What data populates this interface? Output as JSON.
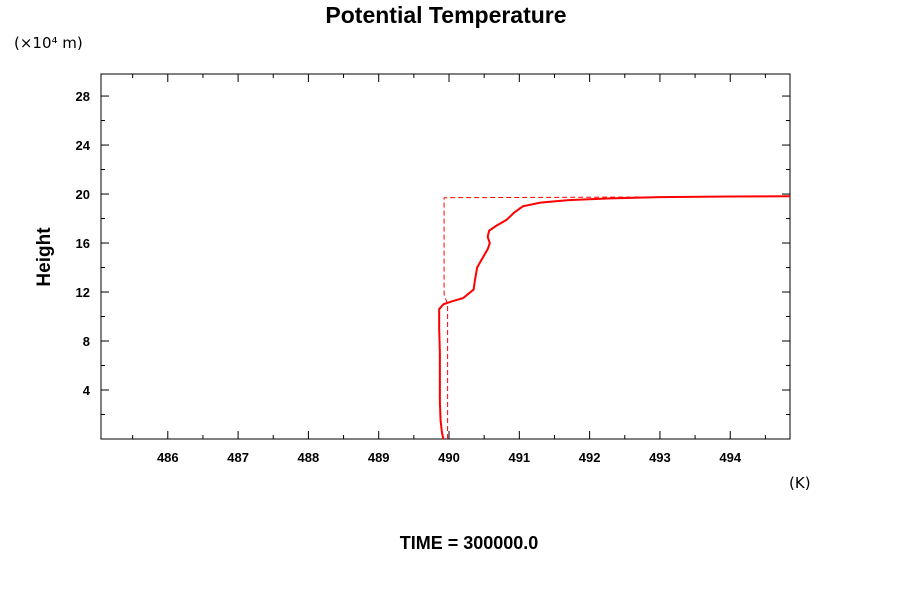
{
  "chart_data": {
    "type": "line",
    "title": "Potential Temperature",
    "ylabel": "Height",
    "yunits": "(×10⁴ m)",
    "xunits": "(K)",
    "footer": "TIME = 300000.0",
    "xlim": [
      485.05,
      494.85
    ],
    "ylim": [
      0,
      29.8
    ],
    "xticks": [
      486,
      487,
      488,
      489,
      490,
      491,
      492,
      493,
      494
    ],
    "yticks": [
      4,
      8,
      12,
      16,
      20,
      24,
      28
    ],
    "grid": false,
    "colors": {
      "series": "#ff0000",
      "axes": "#000000"
    },
    "series": [
      {
        "style": "solid",
        "points": [
          [
            489.92,
            0.0
          ],
          [
            489.9,
            0.5
          ],
          [
            489.88,
            1.5
          ],
          [
            489.87,
            3.0
          ],
          [
            489.87,
            5.0
          ],
          [
            489.87,
            7.0
          ],
          [
            489.86,
            9.0
          ],
          [
            489.86,
            10.6
          ],
          [
            489.92,
            11.0
          ],
          [
            490.05,
            11.25
          ],
          [
            490.2,
            11.5
          ],
          [
            490.35,
            12.2
          ],
          [
            490.37,
            13.0
          ],
          [
            490.4,
            14.0
          ],
          [
            490.45,
            14.5
          ],
          [
            490.5,
            15.0
          ],
          [
            490.55,
            15.5
          ],
          [
            490.58,
            16.0
          ],
          [
            490.55,
            16.5
          ],
          [
            490.57,
            17.0
          ],
          [
            490.67,
            17.4
          ],
          [
            490.82,
            17.9
          ],
          [
            490.93,
            18.5
          ],
          [
            491.05,
            19.0
          ],
          [
            491.3,
            19.3
          ],
          [
            491.7,
            19.5
          ],
          [
            492.3,
            19.65
          ],
          [
            493.0,
            19.75
          ],
          [
            494.0,
            19.8
          ],
          [
            494.85,
            19.82
          ]
        ]
      },
      {
        "style": "dashed",
        "points": [
          [
            489.98,
            0.0
          ],
          [
            489.98,
            11.0
          ],
          [
            489.93,
            11.8
          ],
          [
            489.93,
            19.7
          ],
          [
            491.0,
            19.72
          ],
          [
            492.0,
            19.74
          ],
          [
            493.0,
            19.76
          ],
          [
            494.0,
            19.8
          ],
          [
            494.85,
            19.82
          ]
        ]
      }
    ]
  }
}
